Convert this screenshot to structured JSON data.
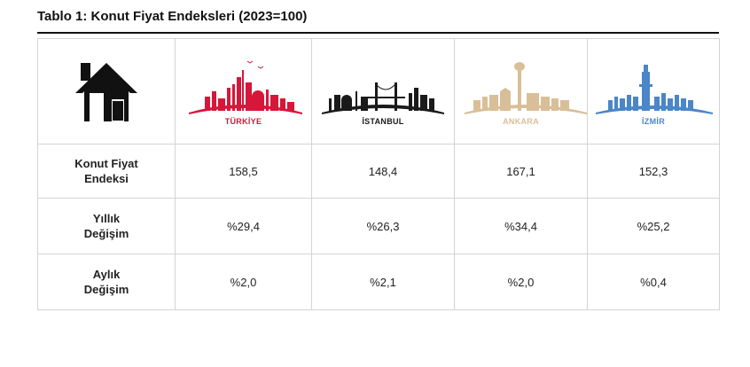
{
  "title": "Tablo 1: Konut Fiyat Endeksleri (2023=100)",
  "header": {
    "icon": "house-icon",
    "cities": [
      {
        "name": "TÜRKİYE",
        "color": "#d6173a",
        "icon": "turkiye-skyline-icon"
      },
      {
        "name": "İSTANBUL",
        "color": "#1a1a1a",
        "icon": "istanbul-skyline-icon"
      },
      {
        "name": "ANKARA",
        "color": "#d9bf98",
        "icon": "ankara-skyline-icon"
      },
      {
        "name": "İZMİR",
        "color": "#4a86c8",
        "icon": "izmir-skyline-icon"
      }
    ]
  },
  "rows": [
    {
      "label": "Konut Fiyat Endeksi",
      "values": [
        "158,5",
        "148,4",
        "167,1",
        "152,3"
      ]
    },
    {
      "label": "Yıllık Değişim",
      "values": [
        "%29,4",
        "%26,3",
        "%34,4",
        "%25,2"
      ]
    },
    {
      "label": "Aylık Değişim",
      "values": [
        "%2,0",
        "%2,1",
        "%2,0",
        "%0,4"
      ]
    }
  ]
}
